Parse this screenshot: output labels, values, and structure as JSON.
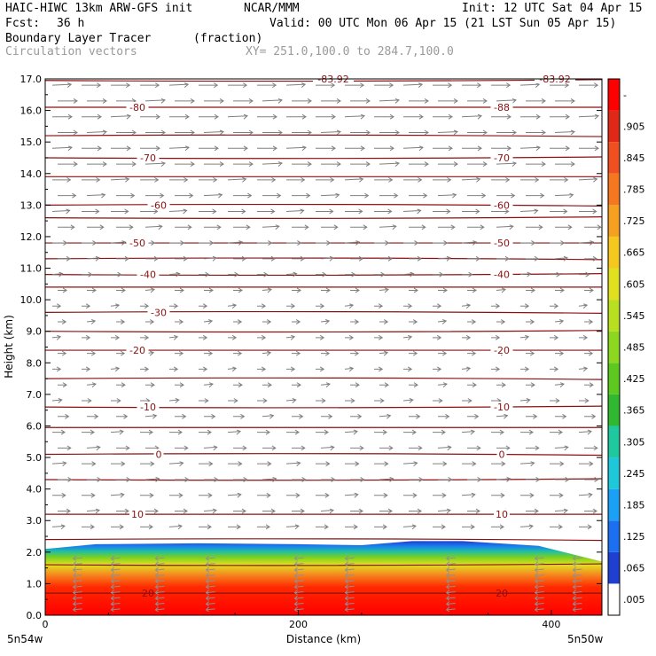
{
  "header": {
    "model": "HAIC-HIWC 13km ARW-GFS init",
    "org": "NCAR/MMM",
    "init": "Init: 12 UTC Sat 04 Apr 15",
    "fcst_label": "Fcst:",
    "fcst_value": "36 h",
    "valid": "Valid: 00 UTC Mon 06 Apr 15 (21 LST Sun 05 Apr 15)",
    "field": "Boundary Layer Tracer",
    "units": "(fraction)",
    "vectors": "Circulation vectors",
    "xy": "XY= 251.0,100.0 to 284.7,100.0"
  },
  "chart_data": {
    "type": "heatmap",
    "title": "Boundary Layer Tracer",
    "units": "(fraction)",
    "xlabel": "Distance (km)",
    "ylabel": "Height (km)",
    "xlim": [
      0,
      440
    ],
    "ylim": [
      0,
      17
    ],
    "x_ticks": [
      "0",
      "200",
      "400"
    ],
    "x_tick_values": [
      0,
      200,
      400
    ],
    "x_endpoints": [
      "5n54w",
      "5n50w"
    ],
    "y_ticks": [
      "0.0",
      "1.0",
      "2.0",
      "3.0",
      "4.0",
      "5.0",
      "6.0",
      "7.0",
      "8.0",
      "9.0",
      "10.0",
      "11.0",
      "12.0",
      "13.0",
      "14.0",
      "15.0",
      "16.0",
      "17.0"
    ],
    "colorbar": {
      "labels": [
        ".005",
        ".065",
        ".125",
        ".185",
        ".245",
        ".305",
        ".365",
        ".425",
        ".485",
        ".545",
        ".605",
        ".665",
        ".725",
        ".785",
        ".845",
        ".905",
        "-"
      ],
      "colors": [
        "#ffffff",
        "#1f3fd0",
        "#1b6ff0",
        "#1aa0f5",
        "#1fc8d8",
        "#20c8a0",
        "#30b830",
        "#5cc820",
        "#8cd820",
        "#b8e020",
        "#e0e020",
        "#f5c820",
        "#f5a020",
        "#f57820",
        "#f05020",
        "#e02818",
        "#ff0000"
      ]
    },
    "temperature_contours": {
      "line_color": "#8b1010",
      "left_labels": [
        {
          "label": "-80",
          "z": 16.1
        },
        {
          "label": "-70",
          "z": 14.5
        },
        {
          "label": "-60",
          "z": 13.0
        },
        {
          "label": "-50",
          "z": 11.8
        },
        {
          "label": "-40",
          "z": 10.8
        },
        {
          "label": "-30",
          "z": 9.6
        },
        {
          "label": "-20",
          "z": 8.4
        },
        {
          "label": "-10",
          "z": 6.6
        },
        {
          "label": "0",
          "z": 5.1
        },
        {
          "label": "10",
          "z": 3.2
        },
        {
          "label": "20",
          "z": 0.7
        }
      ],
      "right_labels": [
        {
          "label": "-88",
          "z": 16.1
        },
        {
          "label": "-70",
          "z": 14.5
        },
        {
          "label": "-60",
          "z": 13.0
        },
        {
          "label": "-50",
          "z": 11.8
        },
        {
          "label": "-40",
          "z": 10.8
        },
        {
          "label": "-20",
          "z": 8.4
        },
        {
          "label": "-10",
          "z": 6.6
        },
        {
          "label": "0",
          "z": 5.1
        },
        {
          "label": "10",
          "z": 3.2
        },
        {
          "label": "20",
          "z": 0.7
        }
      ],
      "top_labels": [
        "-83.92",
        "-83.92"
      ],
      "levels_z": [
        16.95,
        16.1,
        15.2,
        14.5,
        13.9,
        13.0,
        12.6,
        11.8,
        11.3,
        10.8,
        10.4,
        9.6,
        9.0,
        8.4,
        7.5,
        6.6,
        5.95,
        5.1,
        4.3,
        3.2,
        2.4,
        1.6,
        0.7
      ]
    },
    "tracer_layer": {
      "top_z_profile": [
        {
          "x": 0,
          "z": 2.1
        },
        {
          "x": 40,
          "z": 2.25
        },
        {
          "x": 120,
          "z": 2.28
        },
        {
          "x": 200,
          "z": 2.25
        },
        {
          "x": 250,
          "z": 2.22
        },
        {
          "x": 290,
          "z": 2.35
        },
        {
          "x": 330,
          "z": 2.35
        },
        {
          "x": 390,
          "z": 2.2
        },
        {
          "x": 440,
          "z": 1.7
        }
      ],
      "base_value": 1.0
    },
    "vectors": {
      "color": "#808080",
      "rows_z": [
        16.8,
        16.3,
        15.8,
        15.3,
        14.8,
        14.3,
        13.8,
        13.3,
        12.8,
        12.3,
        11.8,
        11.3,
        10.8,
        10.3,
        9.8,
        9.3,
        8.8,
        8.3,
        7.8,
        7.3,
        6.8,
        6.3,
        5.8,
        5.3,
        4.8,
        4.3,
        3.8,
        3.3,
        2.8
      ],
      "speeds": [
        0.95,
        1.0,
        1.0,
        1.0,
        1.0,
        1.0,
        0.9,
        0.9,
        0.85,
        0.8,
        0.65,
        0.5,
        0.35,
        0.25,
        0.2,
        0.2,
        0.2,
        0.2,
        0.2,
        0.25,
        0.3,
        0.4,
        0.5,
        0.55,
        0.6,
        0.6,
        0.55,
        0.5,
        0.5
      ],
      "low_level_columns_x": [
        25,
        55,
        90,
        130,
        200,
        240,
        320,
        390,
        420
      ]
    }
  }
}
